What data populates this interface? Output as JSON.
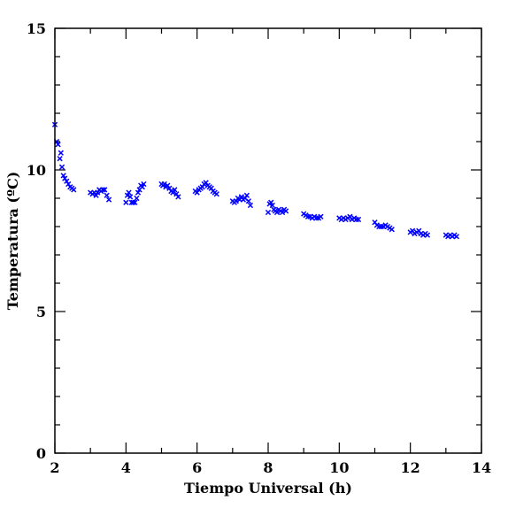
{
  "chart_data": {
    "type": "scatter",
    "title": "",
    "xlabel": "Tiempo Universal (h)",
    "ylabel": "Temperatura (ºC)",
    "xlim": [
      2,
      14
    ],
    "ylim": [
      0,
      15
    ],
    "xticks": [
      2,
      4,
      6,
      8,
      10,
      12,
      14
    ],
    "xtick_labels": [
      "2",
      "4",
      "6",
      "8",
      "10",
      "12",
      "14"
    ],
    "yticks": [
      0,
      5,
      10,
      15
    ],
    "ytick_labels": [
      "0",
      "5",
      "10",
      "15"
    ],
    "marker": "x",
    "color": "#0000ff",
    "grid": false,
    "series": [
      {
        "x": [
          2.0,
          2.05,
          2.09,
          2.14,
          2.17,
          2.2,
          2.24,
          2.28,
          2.33,
          2.38,
          2.43,
          2.48,
          2.53,
          3.0,
          3.06,
          3.11,
          3.16,
          3.2,
          3.25,
          3.3,
          3.35,
          3.4,
          3.46,
          3.52,
          4.0,
          4.04,
          4.08,
          4.12,
          4.16,
          4.2,
          4.25,
          4.3,
          4.34,
          4.38,
          4.42,
          4.46,
          4.5,
          5.0,
          5.04,
          5.08,
          5.12,
          5.17,
          5.22,
          5.27,
          5.32,
          5.37,
          5.42,
          5.47,
          5.95,
          6.0,
          6.05,
          6.1,
          6.15,
          6.2,
          6.25,
          6.3,
          6.35,
          6.4,
          6.45,
          6.5,
          6.55,
          7.0,
          7.05,
          7.1,
          7.15,
          7.2,
          7.25,
          7.3,
          7.35,
          7.4,
          7.45,
          7.5,
          8.0,
          8.04,
          8.08,
          8.12,
          8.16,
          8.2,
          8.25,
          8.3,
          8.35,
          8.4,
          8.45,
          8.5,
          9.0,
          9.06,
          9.12,
          9.18,
          9.24,
          9.3,
          9.36,
          9.42,
          9.48,
          10.0,
          10.06,
          10.12,
          10.18,
          10.24,
          10.3,
          10.36,
          10.42,
          10.48,
          10.54,
          11.0,
          11.06,
          11.12,
          11.18,
          11.24,
          11.3,
          11.36,
          11.42,
          11.48,
          12.0,
          12.06,
          12.12,
          12.18,
          12.24,
          12.3,
          12.36,
          12.42,
          12.48,
          13.0,
          13.06,
          13.12,
          13.18,
          13.24,
          13.3
        ],
        "y": [
          11.6,
          11.0,
          10.9,
          10.4,
          10.6,
          10.1,
          9.8,
          9.7,
          9.6,
          9.5,
          9.4,
          9.35,
          9.3,
          9.2,
          9.15,
          9.2,
          9.1,
          9.2,
          9.3,
          9.25,
          9.3,
          9.3,
          9.1,
          8.95,
          8.85,
          9.1,
          9.2,
          9.05,
          8.85,
          8.85,
          8.85,
          9.0,
          9.2,
          9.3,
          9.45,
          9.4,
          9.5,
          9.5,
          9.45,
          9.5,
          9.4,
          9.45,
          9.35,
          9.25,
          9.2,
          9.3,
          9.15,
          9.05,
          9.25,
          9.2,
          9.3,
          9.35,
          9.4,
          9.5,
          9.55,
          9.45,
          9.4,
          9.35,
          9.25,
          9.2,
          9.15,
          8.9,
          8.85,
          8.9,
          9.0,
          8.95,
          9.05,
          8.95,
          9.0,
          9.1,
          8.9,
          8.75,
          8.5,
          8.8,
          8.85,
          8.75,
          8.6,
          8.55,
          8.5,
          8.6,
          8.55,
          8.5,
          8.6,
          8.55,
          8.45,
          8.4,
          8.35,
          8.35,
          8.3,
          8.35,
          8.3,
          8.3,
          8.35,
          8.3,
          8.25,
          8.3,
          8.25,
          8.3,
          8.35,
          8.25,
          8.3,
          8.25,
          8.25,
          8.15,
          8.05,
          8.0,
          8.0,
          8.0,
          8.05,
          8.0,
          7.95,
          7.9,
          7.8,
          7.85,
          7.75,
          7.8,
          7.85,
          7.75,
          7.7,
          7.75,
          7.7,
          7.7,
          7.65,
          7.7,
          7.65,
          7.7,
          7.65
        ]
      }
    ]
  }
}
